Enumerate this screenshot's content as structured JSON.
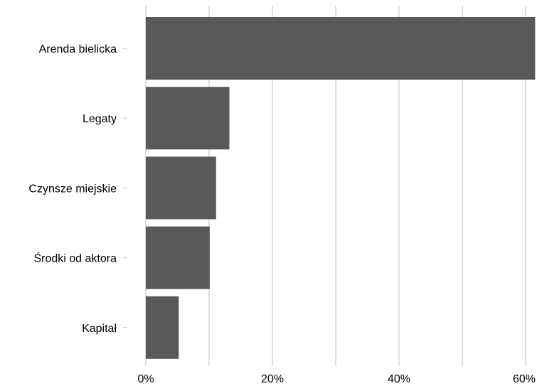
{
  "chart_data": {
    "type": "bar",
    "orientation": "horizontal",
    "title": "",
    "xlabel": "",
    "ylabel": "",
    "categories": [
      "Arenda bielicka",
      "Legaty",
      "Czynsze miejskie",
      "Środki od aktora",
      "Kapitał"
    ],
    "values": [
      61.5,
      13.2,
      11.1,
      10.1,
      5.2
    ],
    "x_ticks": [
      0,
      20,
      40,
      60
    ],
    "x_tick_labels": [
      "0%",
      "20%",
      "40%",
      "60%"
    ],
    "xlim": [
      0,
      60
    ],
    "grid": true,
    "legend": "none",
    "bar_color": "#595959",
    "grid_color": "#bfbfbf"
  }
}
